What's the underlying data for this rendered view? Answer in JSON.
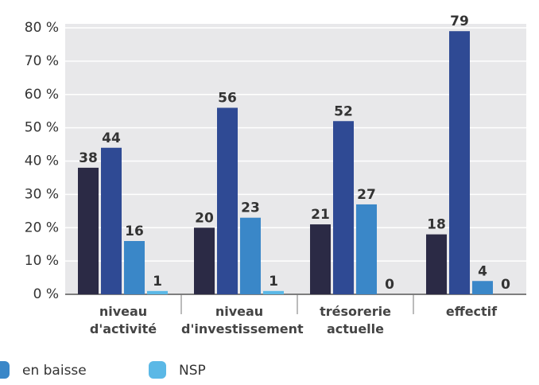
{
  "chart_data": {
    "type": "bar",
    "categories": [
      "niveau\nd'activité",
      "niveau\nd'investissement",
      "trésorerie\nactuelle",
      "effectif"
    ],
    "series": [
      {
        "color": "#2b2a45",
        "values": [
          38,
          20,
          21,
          18
        ]
      },
      {
        "color": "#2f4a94",
        "values": [
          44,
          56,
          52,
          79
        ]
      },
      {
        "name": "en baisse",
        "color": "#3a87c8",
        "values": [
          16,
          23,
          27,
          4
        ]
      },
      {
        "name": "NSP",
        "color": "#5bb8e6",
        "values": [
          1,
          1,
          0,
          0
        ]
      }
    ],
    "ylim": [
      0,
      80
    ],
    "yticks": [
      {
        "value": 0,
        "label": "0 %"
      },
      {
        "value": 10,
        "label": "10 %"
      },
      {
        "value": 20,
        "label": "20 %"
      },
      {
        "value": 30,
        "label": "30 %"
      },
      {
        "value": 40,
        "label": "40 %"
      },
      {
        "value": 50,
        "label": "50 %"
      },
      {
        "value": 60,
        "label": "60 %"
      },
      {
        "value": 70,
        "label": "70 %"
      },
      {
        "value": 80,
        "label": "80 %"
      }
    ],
    "grid": true
  }
}
